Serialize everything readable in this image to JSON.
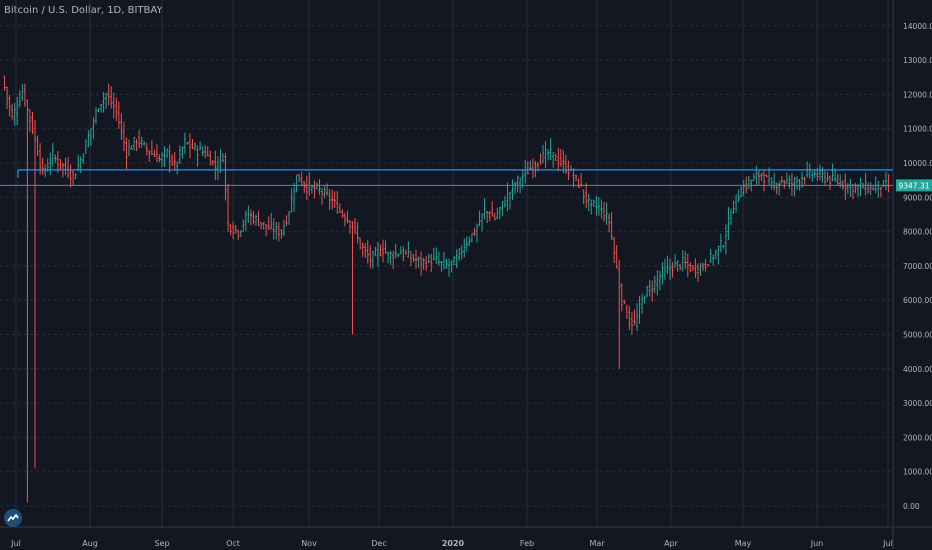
{
  "header": {
    "title": "Bitcoin / U.S. Dollar, 1D, BITBAY"
  },
  "price_label": {
    "value": "9347.31"
  },
  "colors": {
    "background": "#131722",
    "grid": "#2a2e39",
    "up": "#26a69a",
    "down": "#ef5350",
    "hline": "#2196f3",
    "last_price_line": "#26a69a",
    "text": "#b2b5be"
  },
  "chart_data": {
    "type": "ohlc",
    "title": "Bitcoin / U.S. Dollar, 1D, BITBAY",
    "x_ticks": [
      "Jul",
      "Aug",
      "Sep",
      "Oct",
      "Nov",
      "Dec",
      "2020",
      "Feb",
      "Mar",
      "Apr",
      "May",
      "Jun",
      "Jul"
    ],
    "y_ticks": [
      0,
      1000,
      2000,
      3000,
      4000,
      5000,
      6000,
      7000,
      8000,
      9000,
      10000,
      11000,
      12000,
      13000,
      14000
    ],
    "y_tick_labels": [
      "0.00",
      "1000.00",
      "2000.00",
      "3000.00",
      "4000.00",
      "5000.00",
      "6000.00",
      "7000.00",
      "8000.00",
      "9000.00",
      "10000.00",
      "11000.00",
      "12000.00",
      "13000.00",
      "14000.00"
    ],
    "ylim": [
      -300,
      14600
    ],
    "horizontal_line": 9800,
    "last_price": 9347.31,
    "grid": true,
    "series": [
      {
        "values": [
          [
            0,
            12500
          ],
          [
            4,
            11300
          ],
          [
            8,
            12100
          ],
          [
            12,
            11000
          ],
          [
            16,
            9700
          ],
          [
            20,
            10200
          ],
          [
            24,
            9900
          ],
          [
            28,
            9600
          ],
          [
            31,
            10100
          ],
          [
            35,
            11000
          ],
          [
            38,
            11700
          ],
          [
            41,
            12000
          ],
          [
            45,
            11500
          ],
          [
            49,
            10300
          ],
          [
            53,
            10700
          ],
          [
            57,
            10400
          ],
          [
            62,
            10100
          ],
          [
            65,
            10300
          ],
          [
            68,
            9900
          ],
          [
            72,
            10600
          ],
          [
            76,
            10400
          ],
          [
            80,
            10300
          ],
          [
            84,
            9900
          ],
          [
            87,
            10200
          ],
          [
            89,
            8200
          ],
          [
            93,
            8000
          ],
          [
            97,
            8500
          ],
          [
            101,
            8300
          ],
          [
            105,
            8100
          ],
          [
            110,
            8000
          ],
          [
            113,
            8600
          ],
          [
            116,
            9600
          ],
          [
            120,
            9300
          ],
          [
            125,
            9200
          ],
          [
            130,
            8900
          ],
          [
            134,
            8500
          ],
          [
            138,
            8200
          ],
          [
            141,
            7600
          ],
          [
            145,
            7200
          ],
          [
            150,
            7500
          ],
          [
            152,
            7300
          ],
          [
            157,
            7400
          ],
          [
            162,
            7200
          ],
          [
            166,
            7100
          ],
          [
            170,
            7200
          ],
          [
            174,
            7000
          ],
          [
            178,
            7100
          ],
          [
            182,
            7600
          ],
          [
            186,
            8000
          ],
          [
            190,
            8600
          ],
          [
            194,
            8400
          ],
          [
            198,
            8900
          ],
          [
            202,
            9400
          ],
          [
            206,
            9700
          ],
          [
            210,
            10000
          ],
          [
            215,
            10300
          ],
          [
            219,
            10100
          ],
          [
            223,
            9800
          ],
          [
            227,
            9400
          ],
          [
            231,
            8800
          ],
          [
            235,
            8700
          ],
          [
            239,
            8300
          ],
          [
            244,
            6000
          ],
          [
            247,
            5400
          ],
          [
            249,
            5300
          ],
          [
            253,
            6200
          ],
          [
            256,
            6400
          ],
          [
            260,
            6800
          ],
          [
            264,
            7000
          ],
          [
            268,
            7100
          ],
          [
            272,
            6900
          ],
          [
            276,
            7000
          ],
          [
            280,
            7300
          ],
          [
            284,
            7700
          ],
          [
            288,
            8800
          ],
          [
            292,
            9300
          ],
          [
            295,
            9500
          ],
          [
            299,
            9700
          ],
          [
            303,
            9300
          ],
          [
            307,
            9500
          ],
          [
            311,
            9400
          ],
          [
            315,
            9600
          ],
          [
            319,
            9700
          ],
          [
            323,
            9600
          ],
          [
            327,
            9500
          ],
          [
            331,
            9400
          ],
          [
            335,
            9300
          ],
          [
            339,
            9300
          ],
          [
            342,
            9250
          ],
          [
            346,
            9347
          ]
        ]
      }
    ]
  }
}
